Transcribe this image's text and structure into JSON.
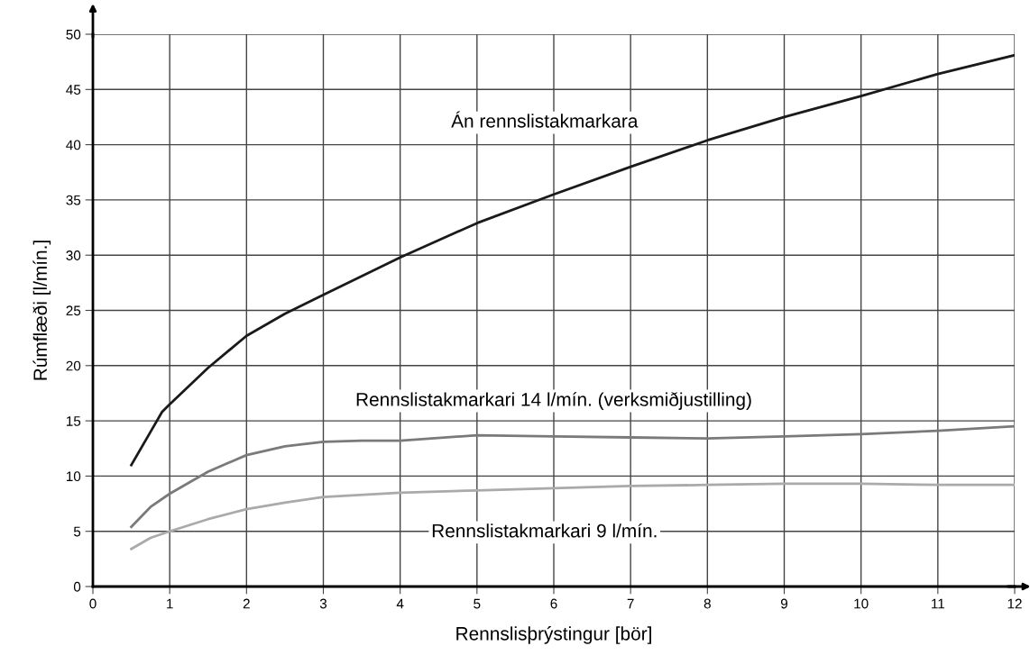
{
  "chart_data": {
    "type": "line",
    "xlabel": "Rennslisþrýstingur [bör]",
    "ylabel": "Rúmflæði [l/mín.]",
    "xlim": [
      0,
      12
    ],
    "xticks": [
      0,
      1,
      2,
      3,
      4,
      5,
      6,
      7,
      8,
      9,
      10,
      11,
      12
    ],
    "ylim": [
      0,
      50
    ],
    "yticks": [
      0,
      5,
      10,
      15,
      20,
      25,
      30,
      35,
      40,
      45,
      50
    ],
    "grid": true,
    "legend": false,
    "marker": "none",
    "line_style": "solid",
    "series": [
      {
        "name": "Án rennslistakmarkara",
        "color": "#1a1a1a",
        "x": [
          0.5,
          0.75,
          0.9,
          1,
          1.5,
          2,
          2.5,
          3,
          4,
          5,
          6,
          7,
          8,
          9,
          10,
          11,
          12
        ],
        "values": [
          11,
          14,
          15.8,
          16.5,
          19.8,
          22.7,
          24.7,
          26.4,
          29.8,
          32.9,
          35.5,
          38,
          40.4,
          42.5,
          44.4,
          46.4,
          48.1
        ]
      },
      {
        "name": "Rennslistakmarkari 14 l/mín. (verksmiðjustilling)",
        "color": "#7a7a7a",
        "x": [
          0.5,
          0.75,
          1,
          1.5,
          2,
          2.5,
          3,
          3.5,
          4,
          5,
          6,
          7,
          8,
          9,
          10,
          11,
          12
        ],
        "values": [
          5.4,
          7.2,
          8.4,
          10.4,
          11.9,
          12.7,
          13.1,
          13.2,
          13.2,
          13.7,
          13.6,
          13.5,
          13.4,
          13.6,
          13.8,
          14.1,
          14.5
        ]
      },
      {
        "name": "Rennslistakmarkari 9 l/mín.",
        "color": "#aaaaaa",
        "x": [
          0.5,
          0.75,
          1,
          1.5,
          2,
          2.5,
          3,
          4,
          5,
          6,
          7,
          8,
          9,
          10,
          11,
          12
        ],
        "values": [
          3.4,
          4.4,
          5.0,
          6.1,
          7.0,
          7.6,
          8.1,
          8.5,
          8.7,
          8.9,
          9.1,
          9.2,
          9.3,
          9.3,
          9.2,
          9.2
        ]
      }
    ]
  }
}
